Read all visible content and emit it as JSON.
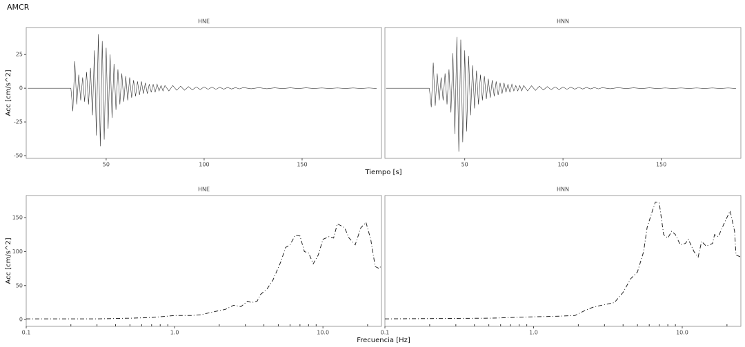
{
  "title": "AMCR",
  "chart_data": [
    {
      "type": "line",
      "title": "HNE",
      "xlabel": "Tiempo [s]",
      "ylabel": "Acc [cm/s^2]",
      "color": "#333333",
      "line_style": "solid",
      "log_x": false,
      "xlim": [
        9.2,
        190.5
      ],
      "ylim": [
        -52,
        45
      ],
      "xticks": [
        50,
        100,
        150
      ],
      "yticks": [
        25,
        0,
        -25,
        -50
      ],
      "x": [
        10,
        32,
        33,
        34,
        35,
        36,
        37,
        38,
        39,
        40,
        41,
        42,
        43,
        44,
        45,
        46,
        47,
        48,
        49,
        50,
        51,
        52,
        53,
        54,
        55,
        56,
        57,
        58,
        59,
        60,
        61,
        62,
        63,
        64,
        65,
        66,
        67,
        68,
        69,
        70,
        71,
        72,
        73,
        74,
        75,
        76,
        77,
        78,
        79,
        80,
        82,
        84,
        86,
        88,
        90,
        92,
        94,
        96,
        98,
        100,
        102,
        104,
        106,
        108,
        110,
        112,
        114,
        116,
        118,
        120,
        124,
        128,
        132,
        136,
        140,
        144,
        148,
        152,
        156,
        160,
        164,
        168,
        172,
        176,
        180,
        184,
        188
      ],
      "values": [
        0,
        0,
        -17,
        20,
        -12,
        10,
        -9,
        8,
        -10,
        12,
        -12,
        15,
        -20,
        28,
        -35,
        40,
        -43,
        35,
        -38,
        30,
        -30,
        25,
        -22,
        18,
        -16,
        14,
        -12,
        11,
        -10,
        9,
        -9,
        8,
        -7,
        6,
        -6,
        5,
        -5,
        5,
        -4,
        4,
        -4,
        3,
        -3,
        3,
        -3,
        3,
        -2,
        2,
        -2,
        2,
        -2,
        2,
        -1.5,
        1.5,
        -1.5,
        1.2,
        -1.2,
        1,
        -1,
        1,
        -0.8,
        0.8,
        -0.8,
        0.7,
        -0.7,
        0.6,
        -0.6,
        0.5,
        -0.5,
        0.5,
        -0.4,
        0.4,
        -0.4,
        0.3,
        -0.3,
        0.3,
        -0.3,
        0.3,
        -0.2,
        0.2,
        -0.2,
        0.2,
        -0.2,
        0.2,
        -0.2,
        0.2,
        -0.2
      ]
    },
    {
      "type": "line",
      "title": "HNN",
      "color": "#333333",
      "line_style": "solid",
      "log_x": false,
      "xlim": [
        9.4,
        190.5
      ],
      "ylim": [
        -52,
        45
      ],
      "xticks": [
        50,
        100,
        150
      ],
      "x": [
        10,
        32,
        33,
        34,
        35,
        36,
        37,
        38,
        39,
        40,
        41,
        42,
        43,
        44,
        45,
        46,
        47,
        48,
        49,
        50,
        51,
        52,
        53,
        54,
        55,
        56,
        57,
        58,
        59,
        60,
        61,
        62,
        63,
        64,
        65,
        66,
        67,
        68,
        69,
        70,
        71,
        72,
        73,
        74,
        75,
        76,
        77,
        78,
        79,
        80,
        82,
        84,
        86,
        88,
        90,
        92,
        94,
        96,
        98,
        100,
        102,
        104,
        106,
        108,
        110,
        112,
        114,
        116,
        118,
        120,
        124,
        128,
        132,
        136,
        140,
        144,
        148,
        152,
        156,
        160,
        164,
        168,
        172,
        176,
        180,
        184,
        188
      ],
      "values": [
        0,
        0,
        -14,
        19,
        -13,
        11,
        -9,
        8,
        -9,
        11,
        -12,
        14,
        -18,
        26,
        -34,
        38,
        -47,
        36,
        -40,
        28,
        -32,
        24,
        -20,
        17,
        -15,
        13,
        -12,
        10,
        -9,
        9,
        -8,
        7,
        -7,
        6,
        -6,
        5,
        -5,
        4,
        -4,
        4,
        -3,
        3,
        -3,
        3,
        -2,
        2,
        -2,
        2,
        -2,
        2,
        -2,
        1.8,
        -1.6,
        1.5,
        -1.3,
        1.2,
        -1.1,
        1,
        -1,
        0.9,
        -0.8,
        0.8,
        -0.7,
        0.7,
        -0.6,
        0.6,
        -0.5,
        0.5,
        -0.5,
        0.4,
        -0.4,
        0.4,
        -0.3,
        0.3,
        -0.3,
        0.3,
        -0.3,
        0.2,
        -0.2,
        0.2,
        -0.2,
        0.2,
        -0.2,
        0.2,
        -0.2,
        0.2,
        -0.2
      ]
    },
    {
      "type": "line",
      "title": "HNE",
      "xlabel": "Frecuencia [Hz]",
      "ylabel": "Acc [cm/s^2]",
      "color": "#222222",
      "line_style": "dashdot",
      "log_x": true,
      "xlim": [
        0.1,
        24.8
      ],
      "ylim": [
        -10,
        182.5
      ],
      "xticks": [
        0.1,
        {
          "value": 1,
          "label": "1.0"
        },
        {
          "value": 10,
          "label": "10.0"
        }
      ],
      "yticks": [
        150,
        100,
        50,
        0
      ],
      "minor_xticks": [
        0.2,
        0.3,
        0.4,
        0.5,
        0.6,
        0.7,
        0.8,
        0.9,
        2,
        3,
        4,
        5,
        6,
        7,
        8,
        9,
        20
      ],
      "x": [
        0.1,
        0.3,
        0.5,
        0.7,
        0.9,
        1.0,
        1.3,
        1.5,
        1.8,
        2.2,
        2.5,
        2.8,
        3.1,
        3.3,
        3.6,
        3.8,
        4.2,
        4.6,
        5.2,
        5.6,
        6.0,
        6.5,
        7.0,
        7.5,
        8.0,
        8.6,
        9.3,
        10,
        11,
        11.8,
        12.5,
        14,
        15,
        16.5,
        18,
        19.5,
        21,
        22.5,
        24,
        24.8
      ],
      "values": [
        1,
        1,
        2,
        3,
        5,
        6,
        6,
        7,
        11,
        15,
        21,
        19,
        27,
        25,
        27,
        37,
        45,
        58,
        85,
        106,
        110,
        124,
        123,
        100,
        98,
        82,
        95,
        118,
        122,
        120,
        141,
        135,
        120,
        110,
        135,
        143,
        118,
        78,
        75,
        80
      ]
    },
    {
      "type": "line",
      "title": "HNN",
      "color": "#222222",
      "line_style": "dashdot",
      "log_x": true,
      "xlim": [
        0.1,
        24.8
      ],
      "ylim": [
        -10,
        182.5
      ],
      "xticks": [
        0.1,
        {
          "value": 1,
          "label": "1.0"
        },
        {
          "value": 10,
          "label": "10.0"
        }
      ],
      "minor_xticks": [
        0.2,
        0.3,
        0.4,
        0.5,
        0.6,
        0.7,
        0.8,
        0.9,
        2,
        3,
        4,
        5,
        6,
        7,
        8,
        9,
        20
      ],
      "x": [
        0.1,
        0.5,
        1.0,
        1.5,
        1.9,
        2.2,
        2.5,
        3.0,
        3.5,
        4.0,
        4.5,
        5.0,
        5.5,
        5.8,
        6.3,
        6.6,
        7.0,
        7.5,
        8.0,
        8.5,
        9.0,
        9.7,
        10.5,
        11,
        12,
        12.8,
        13.5,
        14.5,
        16,
        16.5,
        17.5,
        19,
        21,
        22.5,
        23,
        24.8
      ],
      "values": [
        1,
        2,
        4,
        5,
        6,
        13,
        18,
        22,
        25,
        40,
        60,
        70,
        100,
        135,
        160,
        173,
        172,
        125,
        120,
        130,
        125,
        110,
        112,
        118,
        100,
        92,
        115,
        108,
        112,
        125,
        122,
        140,
        160,
        130,
        95,
        92
      ]
    }
  ]
}
